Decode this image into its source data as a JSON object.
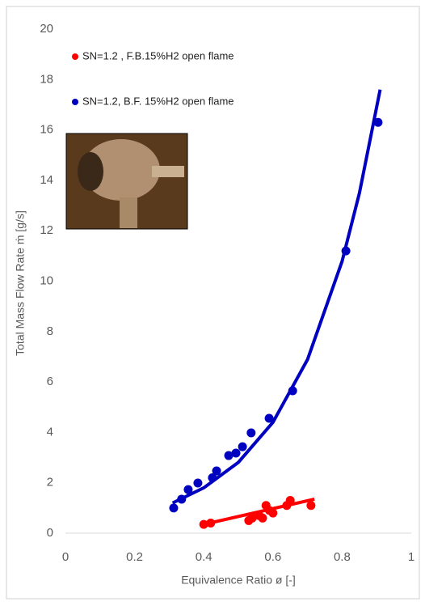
{
  "chart_data": {
    "type": "scatter",
    "xlabel": "Equivalence Ratio ø [-]",
    "ylabel": "Total Mass Flow Rate ṁ [g/s]",
    "xlim": [
      0,
      1
    ],
    "xticks": [
      0,
      0.2,
      0.4,
      0.6,
      0.8,
      1
    ],
    "ylim": [
      0,
      20
    ],
    "yticks": [
      0,
      2,
      4,
      6,
      8,
      10,
      12,
      14,
      16,
      18,
      20
    ],
    "series": [
      {
        "name": "SN=1.2 , F.B.15%H2  open flame",
        "color": "#ff0000",
        "x": [
          0.4,
          0.42,
          0.53,
          0.54,
          0.56,
          0.57,
          0.58,
          0.59,
          0.6,
          0.64,
          0.65,
          0.71
        ],
        "values": [
          0.35,
          0.4,
          0.5,
          0.6,
          0.7,
          0.6,
          1.1,
          0.9,
          0.8,
          1.1,
          1.3,
          1.1
        ],
        "fit": {
          "x": [
            0.4,
            0.72
          ],
          "values": [
            0.35,
            1.35
          ]
        }
      },
      {
        "name": "SN=1.2, B.F. 15%H2 open flame",
        "color": "#0000c0",
        "x": [
          0.313,
          0.336,
          0.355,
          0.383,
          0.425,
          0.437,
          0.472,
          0.493,
          0.512,
          0.537,
          0.589,
          0.657,
          0.811,
          0.904
        ],
        "values": [
          1.0,
          1.35,
          1.73,
          1.99,
          2.2,
          2.47,
          3.08,
          3.18,
          3.43,
          3.98,
          4.56,
          5.65,
          11.2,
          16.3
        ],
        "fit": {
          "x": [
            0.31,
            0.4,
            0.5,
            0.6,
            0.7,
            0.8,
            0.85,
            0.91
          ],
          "values": [
            1.2,
            1.8,
            2.81,
            4.4,
            6.89,
            10.79,
            13.49,
            17.6
          ]
        }
      }
    ]
  }
}
